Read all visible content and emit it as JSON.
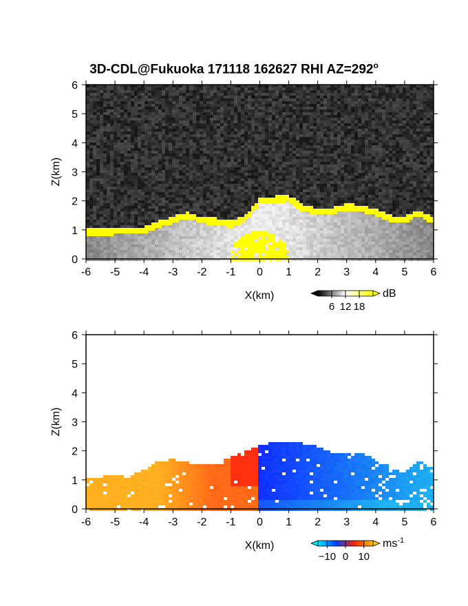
{
  "title": "3D-CDL@Fukuoka 171118 162627 RHI AZ=292",
  "title_superscript": "o",
  "chart_data": [
    {
      "type": "heatmap",
      "panel": "top",
      "quantity": "backscatter intensity",
      "xlabel": "X(km)",
      "ylabel": "Z(km)",
      "xlim": [
        -6,
        6
      ],
      "ylim": [
        0,
        6
      ],
      "x_ticks": [
        "-6",
        "-5",
        "-4",
        "-3",
        "-2",
        "-1",
        "0",
        "1",
        "2",
        "3",
        "4",
        "5",
        "6"
      ],
      "y_ticks": [
        "0",
        "1",
        "2",
        "3",
        "4",
        "5",
        "6"
      ],
      "echo_top_km": [
        {
          "x": -6.0,
          "z": 1.05
        },
        {
          "x": -5.5,
          "z": 1.05
        },
        {
          "x": -5.0,
          "z": 1.05
        },
        {
          "x": -4.0,
          "z": 1.1
        },
        {
          "x": -3.5,
          "z": 1.3
        },
        {
          "x": -3.0,
          "z": 1.45
        },
        {
          "x": -2.5,
          "z": 1.6
        },
        {
          "x": -2.0,
          "z": 1.45
        },
        {
          "x": -1.5,
          "z": 1.4
        },
        {
          "x": -1.0,
          "z": 1.3
        },
        {
          "x": -0.5,
          "z": 1.5
        },
        {
          "x": 0.0,
          "z": 2.1
        },
        {
          "x": 0.5,
          "z": 2.15
        },
        {
          "x": 1.0,
          "z": 2.2
        },
        {
          "x": 1.5,
          "z": 1.85
        },
        {
          "x": 2.0,
          "z": 1.75
        },
        {
          "x": 2.5,
          "z": 1.75
        },
        {
          "x": 3.0,
          "z": 1.9
        },
        {
          "x": 3.5,
          "z": 1.85
        },
        {
          "x": 4.0,
          "z": 1.7
        },
        {
          "x": 4.5,
          "z": 1.5
        },
        {
          "x": 5.0,
          "z": 1.45
        },
        {
          "x": 5.5,
          "z": 1.7
        },
        {
          "x": 6.0,
          "z": 1.4
        }
      ],
      "colorbar": {
        "unit": "dB",
        "ticks": [
          "6",
          "12",
          "18"
        ],
        "range": [
          0,
          24
        ],
        "colors": [
          "#000000",
          "#ffffff",
          "#ffff00"
        ]
      }
    },
    {
      "type": "heatmap",
      "panel": "bottom",
      "quantity": "Doppler velocity",
      "xlabel": "X(km)",
      "ylabel": "Z(km)",
      "xlim": [
        -6,
        6
      ],
      "ylim": [
        0,
        6
      ],
      "x_ticks": [
        "-6",
        "-5",
        "-4",
        "-3",
        "-2",
        "-1",
        "0",
        "1",
        "2",
        "3",
        "4",
        "5",
        "6"
      ],
      "y_ticks": [
        "0",
        "1",
        "2",
        "3",
        "4",
        "5",
        "6"
      ],
      "echo_top_km": [
        {
          "x": -6.0,
          "z": 1.1
        },
        {
          "x": -5.5,
          "z": 1.1
        },
        {
          "x": -5.0,
          "z": 1.15
        },
        {
          "x": -4.5,
          "z": 1.1
        },
        {
          "x": -4.0,
          "z": 1.35
        },
        {
          "x": -3.5,
          "z": 1.65
        },
        {
          "x": -3.0,
          "z": 1.7
        },
        {
          "x": -2.5,
          "z": 1.6
        },
        {
          "x": -2.0,
          "z": 1.55
        },
        {
          "x": -1.5,
          "z": 1.55
        },
        {
          "x": -1.0,
          "z": 1.8
        },
        {
          "x": -0.5,
          "z": 2.0
        },
        {
          "x": 0.0,
          "z": 2.2
        },
        {
          "x": 0.5,
          "z": 2.3
        },
        {
          "x": 1.0,
          "z": 2.35
        },
        {
          "x": 1.5,
          "z": 2.25
        },
        {
          "x": 2.0,
          "z": 2.15
        },
        {
          "x": 2.5,
          "z": 1.95
        },
        {
          "x": 3.0,
          "z": 1.9
        },
        {
          "x": 3.5,
          "z": 1.9
        },
        {
          "x": 4.0,
          "z": 1.7
        },
        {
          "x": 4.5,
          "z": 1.45
        },
        {
          "x": 5.0,
          "z": 1.25
        },
        {
          "x": 5.5,
          "z": 1.65
        },
        {
          "x": 6.0,
          "z": 1.4
        }
      ],
      "colorbar": {
        "unit": "ms",
        "unit_superscript": "-1",
        "ticks": [
          "−10",
          "0",
          "10"
        ],
        "range": [
          -15,
          15
        ],
        "colors": [
          "#00e5ff",
          "#0040ff",
          "#ff2000",
          "#ffc000"
        ]
      },
      "colors": {
        "toward_max": "#1030ff",
        "toward_min": "#20c0f0",
        "away_min": "#ff3010",
        "away_max": "#ffb020"
      }
    }
  ]
}
